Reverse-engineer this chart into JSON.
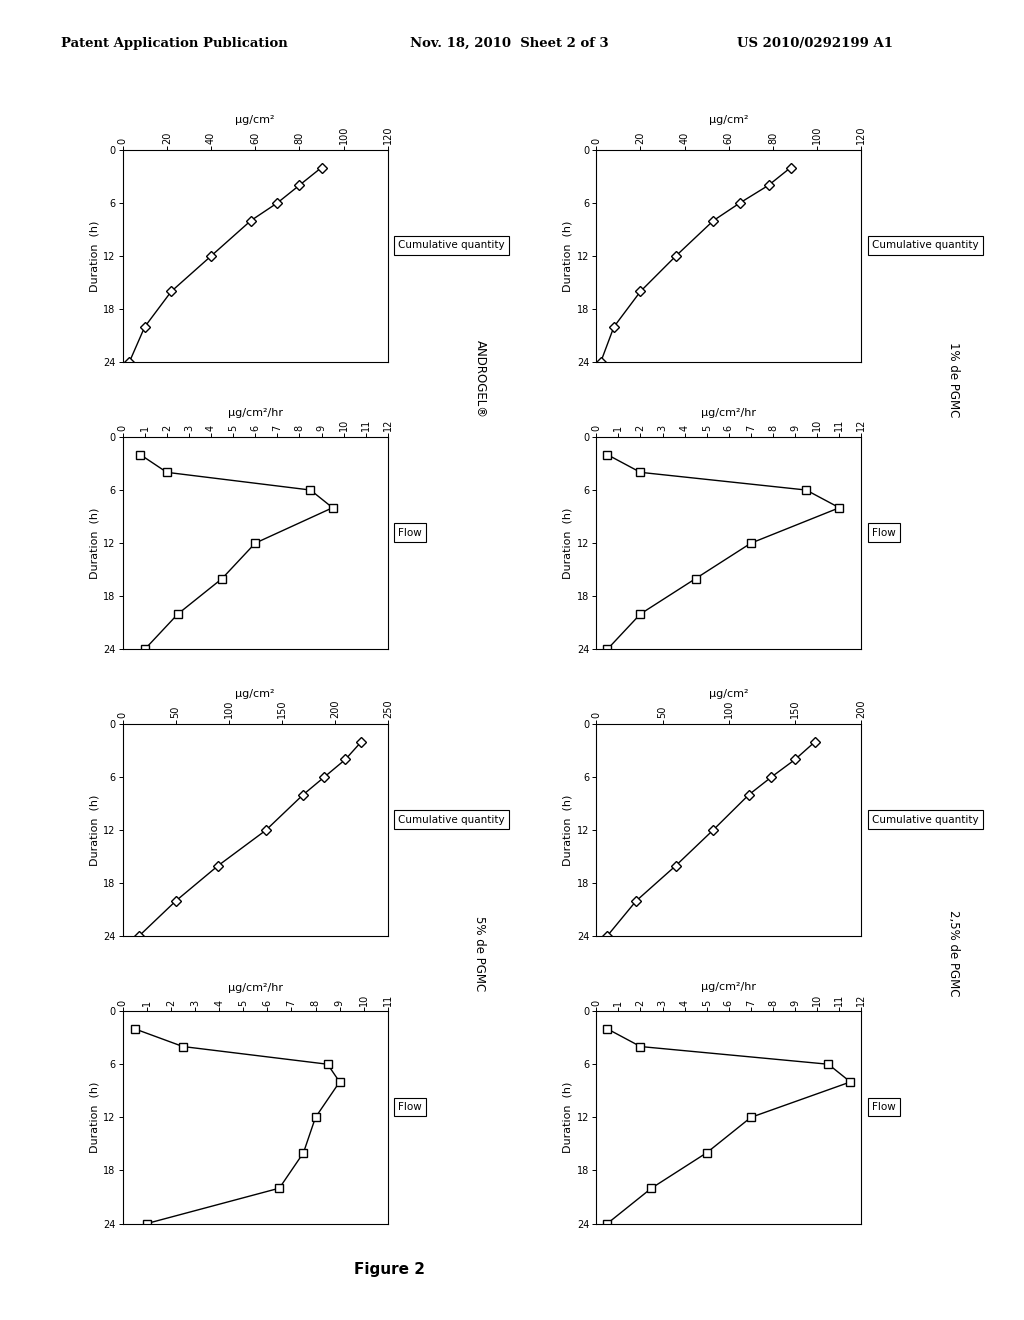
{
  "header_left": "Patent Application Publication",
  "header_mid": "Nov. 18, 2010  Sheet 2 of 3",
  "header_right": "US 2010/0292199 A1",
  "figure_label": "Figure 2",
  "bg_color": "#ffffff",
  "plots": [
    {
      "id": "androgel_cumul",
      "side_label": "ANDROGEL®",
      "legend": "Cumulative quantity",
      "top_label": "μg/cm²",
      "y_label": "Duration  (h)",
      "x_duration": [
        2,
        4,
        6,
        8,
        12,
        16,
        20,
        24
      ],
      "y_values": [
        90,
        80,
        70,
        58,
        40,
        22,
        10,
        3
      ],
      "dur_lim": [
        0,
        24
      ],
      "val_lim": [
        0,
        120
      ],
      "dur_ticks": [
        0,
        6,
        12,
        18,
        24
      ],
      "val_ticks": [
        0,
        20,
        40,
        60,
        80,
        100,
        120
      ],
      "marker": "D",
      "col": 0,
      "row": 0
    },
    {
      "id": "androgel_flow",
      "side_label": "",
      "legend": "Flow",
      "top_label": "μg/cm²/hr",
      "y_label": "Duration  (h)",
      "x_duration": [
        2,
        4,
        6,
        8,
        12,
        16,
        20,
        24
      ],
      "y_values": [
        0.8,
        2.0,
        8.5,
        9.5,
        6.0,
        4.5,
        2.5,
        1.0
      ],
      "dur_lim": [
        0,
        24
      ],
      "val_lim": [
        0,
        12
      ],
      "dur_ticks": [
        0,
        6,
        12,
        18,
        24
      ],
      "val_ticks": [
        0,
        1,
        2,
        3,
        4,
        5,
        6,
        7,
        8,
        9,
        10,
        11,
        12
      ],
      "marker": "s",
      "col": 0,
      "row": 1
    },
    {
      "id": "pgmc5_cumul",
      "side_label": "5% de PGMC",
      "legend": "Cumulative quantity",
      "top_label": "μg/cm²",
      "y_label": "Duration  (h)",
      "x_duration": [
        2,
        4,
        6,
        8,
        12,
        16,
        20,
        24
      ],
      "y_values": [
        225,
        210,
        190,
        170,
        135,
        90,
        50,
        15
      ],
      "dur_lim": [
        0,
        24
      ],
      "val_lim": [
        0,
        250
      ],
      "dur_ticks": [
        0,
        6,
        12,
        18,
        24
      ],
      "val_ticks": [
        0,
        50,
        100,
        150,
        200,
        250
      ],
      "marker": "D",
      "col": 0,
      "row": 2
    },
    {
      "id": "pgmc5_flow",
      "side_label": "",
      "legend": "Flow",
      "top_label": "μg/cm²/hr",
      "y_label": "Duration  (h)",
      "x_duration": [
        2,
        4,
        6,
        8,
        12,
        16,
        20,
        24
      ],
      "y_values": [
        0.5,
        2.5,
        8.5,
        9.0,
        8.0,
        7.5,
        6.5,
        1.0
      ],
      "dur_lim": [
        0,
        24
      ],
      "val_lim": [
        0,
        11
      ],
      "dur_ticks": [
        0,
        6,
        12,
        18,
        24
      ],
      "val_ticks": [
        0,
        1,
        2,
        3,
        4,
        5,
        6,
        7,
        8,
        9,
        10,
        11
      ],
      "marker": "s",
      "col": 0,
      "row": 3
    },
    {
      "id": "pgmc1_cumul",
      "side_label": "1% de PGMC",
      "legend": "Cumulative quantity",
      "top_label": "μg/cm²",
      "y_label": "Duration  (h)",
      "x_duration": [
        2,
        4,
        6,
        8,
        12,
        16,
        20,
        24
      ],
      "y_values": [
        88,
        78,
        65,
        53,
        36,
        20,
        8,
        2
      ],
      "dur_lim": [
        0,
        24
      ],
      "val_lim": [
        0,
        120
      ],
      "dur_ticks": [
        0,
        6,
        12,
        18,
        24
      ],
      "val_ticks": [
        0,
        20,
        40,
        60,
        80,
        100,
        120
      ],
      "marker": "D",
      "col": 1,
      "row": 0
    },
    {
      "id": "pgmc1_flow",
      "side_label": "",
      "legend": "Flow",
      "top_label": "μg/cm²/hr",
      "y_label": "Duration  (h)",
      "x_duration": [
        2,
        4,
        6,
        8,
        12,
        16,
        20,
        24
      ],
      "y_values": [
        0.5,
        2.0,
        9.5,
        11.0,
        7.0,
        4.5,
        2.0,
        0.5
      ],
      "dur_lim": [
        0,
        24
      ],
      "val_lim": [
        0,
        12
      ],
      "dur_ticks": [
        0,
        6,
        12,
        18,
        24
      ],
      "val_ticks": [
        0,
        1,
        2,
        3,
        4,
        5,
        6,
        7,
        8,
        9,
        10,
        11,
        12
      ],
      "marker": "s",
      "col": 1,
      "row": 1
    },
    {
      "id": "pgmc25_cumul",
      "side_label": "2,5% de PGMC",
      "legend": "Cumulative quantity",
      "top_label": "μg/cm²",
      "y_label": "Duration  (h)",
      "x_duration": [
        2,
        4,
        6,
        8,
        12,
        16,
        20,
        24
      ],
      "y_values": [
        165,
        150,
        132,
        115,
        88,
        60,
        30,
        8
      ],
      "dur_lim": [
        0,
        24
      ],
      "val_lim": [
        0,
        200
      ],
      "dur_ticks": [
        0,
        6,
        12,
        18,
        24
      ],
      "val_ticks": [
        0,
        50,
        100,
        150,
        200
      ],
      "marker": "D",
      "col": 1,
      "row": 2
    },
    {
      "id": "pgmc25_flow",
      "side_label": "",
      "legend": "Flow",
      "top_label": "μg/cm²/hr",
      "y_label": "Duration  (h)",
      "x_duration": [
        2,
        4,
        6,
        8,
        12,
        16,
        20,
        24
      ],
      "y_values": [
        0.5,
        2.0,
        10.5,
        11.5,
        7.0,
        5.0,
        2.5,
        0.5
      ],
      "dur_lim": [
        0,
        24
      ],
      "val_lim": [
        0,
        12
      ],
      "dur_ticks": [
        0,
        6,
        12,
        18,
        24
      ],
      "val_ticks": [
        0,
        1,
        2,
        3,
        4,
        5,
        6,
        7,
        8,
        9,
        10,
        11,
        12
      ],
      "marker": "s",
      "col": 1,
      "row": 3
    }
  ],
  "side_labels": {
    "col0_row01": "ANDROGEL®",
    "col0_row23": "5% de PGMC",
    "col1_row01": "1% de PGMC",
    "col1_row23": "2,5% de PGMC"
  }
}
